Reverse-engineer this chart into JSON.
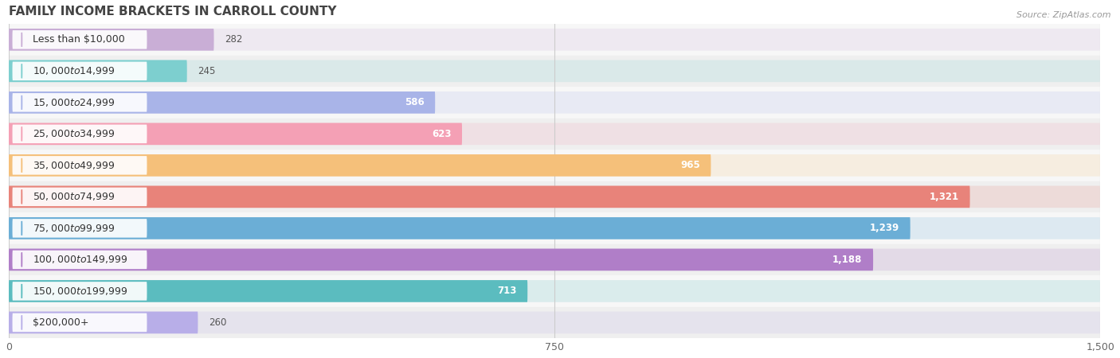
{
  "title": "FAMILY INCOME BRACKETS IN CARROLL COUNTY",
  "source": "Source: ZipAtlas.com",
  "categories": [
    "Less than $10,000",
    "$10,000 to $14,999",
    "$15,000 to $24,999",
    "$25,000 to $34,999",
    "$35,000 to $49,999",
    "$50,000 to $74,999",
    "$75,000 to $99,999",
    "$100,000 to $149,999",
    "$150,000 to $199,999",
    "$200,000+"
  ],
  "values": [
    282,
    245,
    586,
    623,
    965,
    1321,
    1239,
    1188,
    713,
    260
  ],
  "bar_colors": [
    "#c9aed6",
    "#7dcfcf",
    "#a9b4e8",
    "#f4a0b5",
    "#f5c07a",
    "#e8837a",
    "#6baed6",
    "#b07ec8",
    "#5bbcbf",
    "#b8aee8"
  ],
  "row_bg_colors": [
    "#f7f7f7",
    "#efefef"
  ],
  "xlim": [
    0,
    1500
  ],
  "xticks": [
    0,
    750,
    1500
  ],
  "bar_height": 0.7,
  "title_fontsize": 11,
  "label_fontsize": 9,
  "value_fontsize": 8.5,
  "value_label_inside_threshold": 500
}
